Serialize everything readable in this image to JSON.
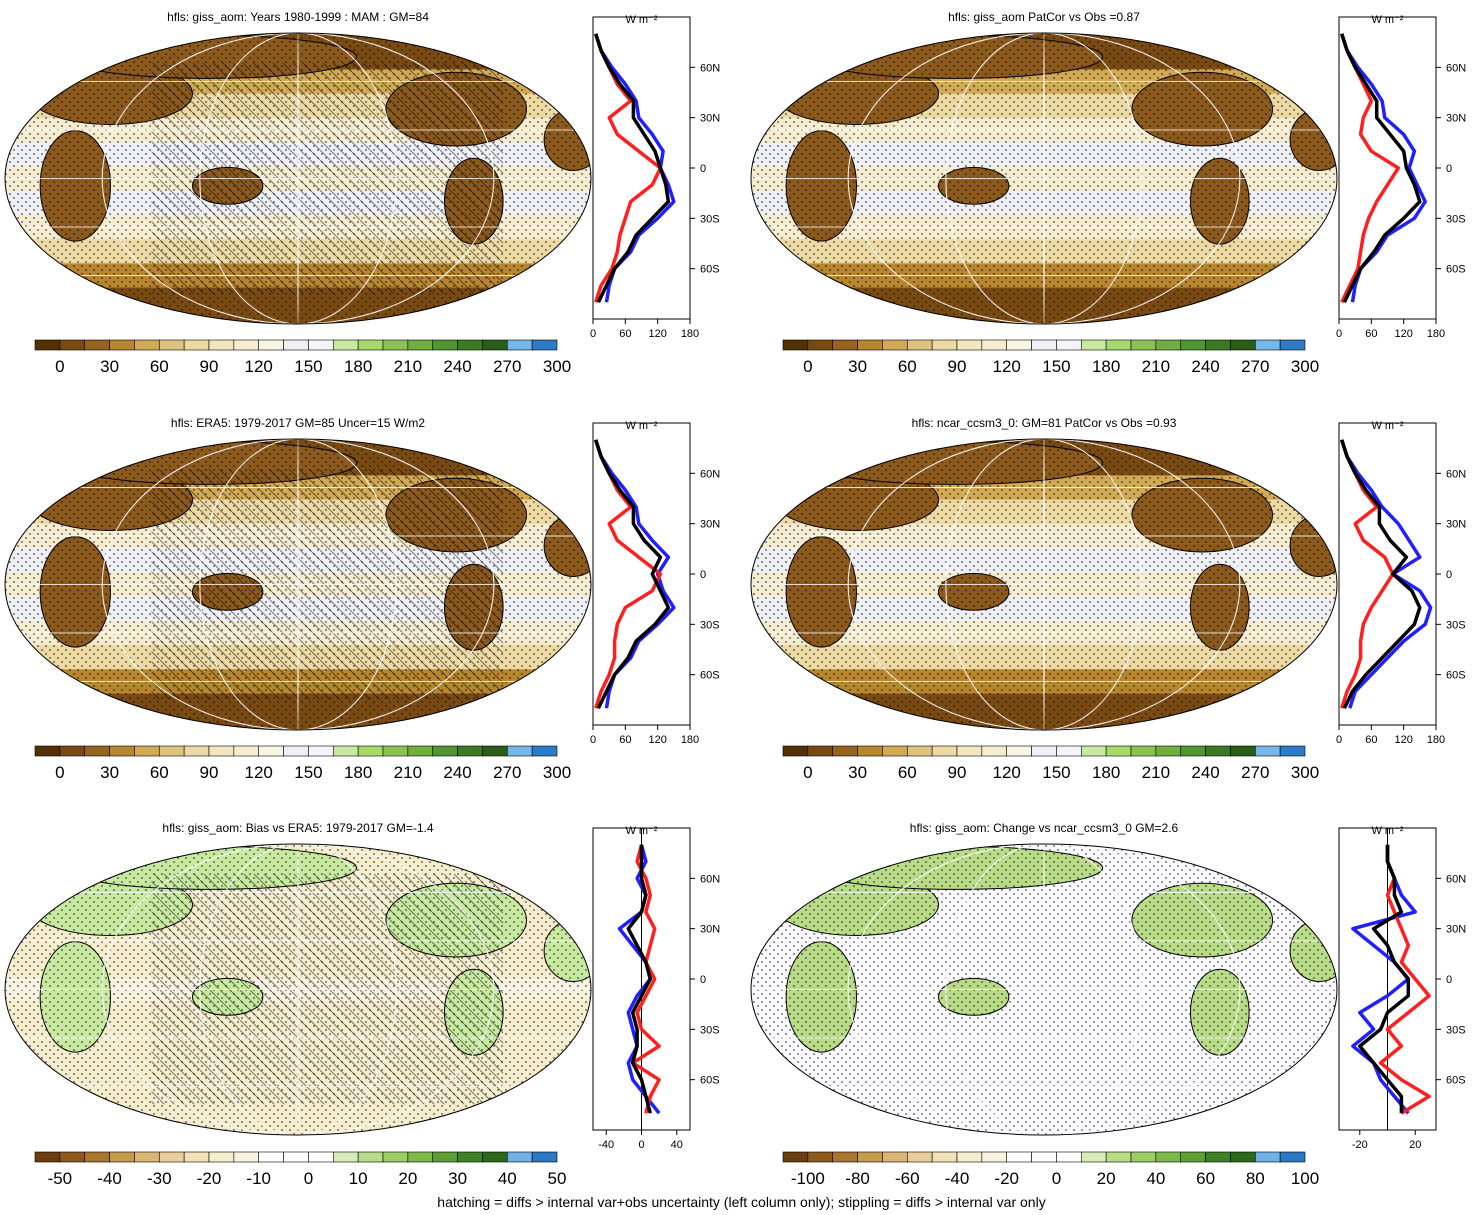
{
  "footer": "hatching = diffs > internal var+obs uncertainty (left column only); stippling = diffs > internal var only",
  "colors": {
    "series_blue": "#1f1fff",
    "series_red": "#ff1f1f",
    "series_black": "#000000",
    "ocean_outline": "#000000"
  },
  "panels": [
    {
      "title": "hfls: giss_aom: Years 1980-1999 : MAM : GM=84",
      "map_kind": "abs",
      "colorbar": {
        "type": "abs",
        "labels": [
          "0",
          "30",
          "60",
          "90",
          "120",
          "150",
          "180",
          "210",
          "240",
          "270",
          "300"
        ]
      },
      "profile": {
        "unit": "W m⁻²",
        "xlabels": [
          "0",
          "60",
          "120",
          "180"
        ],
        "ylabels": [
          "60N",
          "30N",
          "0",
          "30S",
          "60S"
        ]
      }
    },
    {
      "title": "hfls: giss_aom PatCor vs Obs =0.87",
      "map_kind": "abs",
      "colorbar": {
        "type": "abs",
        "labels": [
          "0",
          "30",
          "60",
          "90",
          "120",
          "150",
          "180",
          "210",
          "240",
          "270",
          "300"
        ]
      },
      "profile": {
        "unit": "W m⁻²",
        "xlabels": [
          "0",
          "60",
          "120",
          "180"
        ],
        "ylabels": [
          "60N",
          "30N",
          "0",
          "30S",
          "60S"
        ]
      }
    },
    {
      "title": "hfls: ERA5: 1979-2017 GM=85 Uncer=15 W/m2",
      "map_kind": "abs",
      "colorbar": {
        "type": "abs",
        "labels": [
          "0",
          "30",
          "60",
          "90",
          "120",
          "150",
          "180",
          "210",
          "240",
          "270",
          "300"
        ]
      },
      "profile": {
        "unit": "W m⁻²",
        "xlabels": [
          "0",
          "60",
          "120",
          "180"
        ],
        "ylabels": [
          "60N",
          "30N",
          "0",
          "30S",
          "60S"
        ]
      }
    },
    {
      "title": "hfls: ncar_ccsm3_0: GM=81 PatCor vs Obs =0.93",
      "map_kind": "abs",
      "colorbar": {
        "type": "abs",
        "labels": [
          "0",
          "30",
          "60",
          "90",
          "120",
          "150",
          "180",
          "210",
          "240",
          "270",
          "300"
        ]
      },
      "profile": {
        "unit": "W m⁻²",
        "xlabels": [
          "0",
          "60",
          "120",
          "180"
        ],
        "ylabels": [
          "60N",
          "30N",
          "0",
          "30S",
          "60S"
        ]
      }
    },
    {
      "title": "hfls: giss_aom: Bias vs ERA5: 1979-2017 GM=-1.4",
      "map_kind": "bias",
      "colorbar": {
        "type": "diff",
        "labels": [
          "-50",
          "-40",
          "-30",
          "-20",
          "-10",
          "0",
          "10",
          "20",
          "30",
          "40",
          "50"
        ]
      },
      "profile": {
        "unit": "W m⁻²",
        "xlabels": [
          "-40",
          "0",
          "40"
        ],
        "ylabels": [
          "60N",
          "30N",
          "0",
          "30S",
          "60S"
        ]
      }
    },
    {
      "title": "hfls: giss_aom: Change vs ncar_ccsm3_0 GM=2.6",
      "map_kind": "change",
      "colorbar": {
        "type": "diff",
        "labels": [
          "-100",
          "-80",
          "-60",
          "-40",
          "-20",
          "0",
          "20",
          "40",
          "60",
          "80",
          "100"
        ]
      },
      "profile": {
        "unit": "W m⁻²",
        "xlabels": [
          "-20",
          "20"
        ],
        "ylabels": [
          "60N",
          "30N",
          "0",
          "30S",
          "60S"
        ]
      }
    }
  ],
  "chart_data": [
    {
      "type": "line",
      "title": "hfls: giss_aom: Years 1980-1999 : MAM : GM=84",
      "ylabel": "",
      "ylim": [
        -90,
        90
      ],
      "xlim": [
        0,
        180
      ],
      "y": [
        80,
        70,
        60,
        50,
        40,
        30,
        20,
        10,
        0,
        -10,
        -20,
        -30,
        -40,
        -50,
        -60,
        -70,
        -80
      ],
      "series": [
        {
          "color": "blue",
          "x": [
            5,
            15,
            35,
            60,
            80,
            85,
            110,
            130,
            125,
            140,
            150,
            120,
            85,
            70,
            40,
            30,
            25
          ]
        },
        {
          "color": "red",
          "x": [
            5,
            15,
            30,
            45,
            70,
            30,
            45,
            85,
            125,
            110,
            70,
            60,
            50,
            45,
            35,
            15,
            5
          ]
        },
        {
          "color": "black",
          "x": [
            5,
            15,
            30,
            50,
            75,
            75,
            95,
            115,
            125,
            135,
            140,
            110,
            80,
            65,
            40,
            25,
            10
          ]
        }
      ]
    },
    {
      "type": "line",
      "title": "hfls: giss_aom PatCor vs Obs =0.87",
      "ylabel": "",
      "ylim": [
        -90,
        90
      ],
      "xlim": [
        0,
        180
      ],
      "y": [
        80,
        70,
        60,
        50,
        40,
        30,
        20,
        10,
        0,
        -10,
        -20,
        -30,
        -40,
        -50,
        -60,
        -70,
        -80
      ],
      "series": [
        {
          "color": "blue",
          "x": [
            5,
            15,
            35,
            60,
            80,
            85,
            120,
            140,
            130,
            145,
            160,
            140,
            90,
            70,
            40,
            30,
            25
          ]
        },
        {
          "color": "red",
          "x": [
            5,
            15,
            30,
            45,
            60,
            45,
            40,
            60,
            110,
            90,
            70,
            55,
            45,
            40,
            35,
            20,
            5
          ]
        },
        {
          "color": "black",
          "x": [
            5,
            15,
            30,
            50,
            70,
            70,
            95,
            120,
            125,
            140,
            150,
            120,
            85,
            65,
            40,
            25,
            10
          ]
        }
      ]
    },
    {
      "type": "line",
      "title": "hfls: ERA5: 1979-2017 GM=85 Uncer=15 W/m2",
      "ylabel": "",
      "ylim": [
        -90,
        90
      ],
      "xlim": [
        0,
        180
      ],
      "y": [
        80,
        70,
        60,
        50,
        40,
        30,
        20,
        10,
        0,
        -10,
        -20,
        -30,
        -40,
        -50,
        -60,
        -70,
        -80
      ],
      "series": [
        {
          "color": "blue",
          "x": [
            5,
            15,
            35,
            60,
            80,
            85,
            110,
            140,
            120,
            130,
            150,
            120,
            85,
            70,
            40,
            30,
            25
          ]
        },
        {
          "color": "red",
          "x": [
            5,
            15,
            30,
            45,
            70,
            30,
            45,
            85,
            125,
            110,
            60,
            45,
            40,
            40,
            30,
            15,
            5
          ]
        },
        {
          "color": "black",
          "x": [
            5,
            15,
            30,
            50,
            75,
            75,
            95,
            125,
            110,
            125,
            140,
            115,
            80,
            65,
            40,
            25,
            10
          ]
        }
      ]
    },
    {
      "type": "line",
      "title": "hfls: ncar_ccsm3_0: GM=81 PatCor vs Obs =0.93",
      "ylabel": "",
      "ylim": [
        -90,
        90
      ],
      "xlim": [
        0,
        180
      ],
      "y": [
        80,
        70,
        60,
        50,
        40,
        30,
        20,
        10,
        0,
        -10,
        -20,
        -30,
        -40,
        -50,
        -60,
        -70,
        -80
      ],
      "series": [
        {
          "color": "blue",
          "x": [
            5,
            15,
            35,
            60,
            80,
            110,
            130,
            150,
            100,
            150,
            170,
            160,
            120,
            90,
            60,
            30,
            20
          ]
        },
        {
          "color": "red",
          "x": [
            5,
            15,
            30,
            45,
            70,
            30,
            45,
            85,
            100,
            80,
            60,
            45,
            40,
            40,
            30,
            15,
            5
          ]
        },
        {
          "color": "black",
          "x": [
            5,
            15,
            30,
            50,
            75,
            75,
            95,
            125,
            100,
            135,
            150,
            140,
            110,
            80,
            50,
            25,
            10
          ]
        }
      ]
    },
    {
      "type": "line",
      "title": "hfls: giss_aom: Bias vs ERA5: 1979-2017 GM=-1.4",
      "ylabel": "",
      "ylim": [
        -90,
        90
      ],
      "xlim": [
        -55,
        55
      ],
      "y": [
        80,
        70,
        60,
        50,
        40,
        30,
        20,
        10,
        0,
        -10,
        -20,
        -30,
        -40,
        -50,
        -60,
        -70,
        -80
      ],
      "series": [
        {
          "color": "blue",
          "x": [
            0,
            5,
            -5,
            5,
            0,
            -25,
            -10,
            5,
            10,
            -5,
            -15,
            -10,
            -5,
            -15,
            -10,
            5,
            20
          ]
        },
        {
          "color": "red",
          "x": [
            0,
            -5,
            5,
            10,
            5,
            15,
            10,
            5,
            15,
            5,
            -5,
            0,
            20,
            -10,
            20,
            10,
            5
          ]
        },
        {
          "color": "black",
          "x": [
            0,
            0,
            0,
            5,
            0,
            -15,
            -5,
            5,
            10,
            0,
            -10,
            -5,
            -5,
            -10,
            0,
            5,
            10
          ]
        }
      ]
    },
    {
      "type": "line",
      "title": "hfls: giss_aom: Change vs ncar_ccsm3_0 GM=2.6",
      "ylabel": "",
      "ylim": [
        -90,
        90
      ],
      "xlim": [
        -35,
        35
      ],
      "y": [
        80,
        70,
        60,
        50,
        40,
        30,
        20,
        10,
        0,
        -10,
        -20,
        -30,
        -40,
        -50,
        -60,
        -70,
        -80
      ],
      "series": [
        {
          "color": "blue",
          "x": [
            0,
            0,
            5,
            10,
            20,
            -25,
            -10,
            5,
            15,
            0,
            -20,
            -10,
            -25,
            -10,
            -5,
            5,
            15
          ]
        },
        {
          "color": "red",
          "x": [
            0,
            0,
            5,
            0,
            5,
            10,
            15,
            10,
            20,
            30,
            15,
            0,
            10,
            -5,
            10,
            30,
            10
          ]
        },
        {
          "color": "black",
          "x": [
            0,
            0,
            5,
            5,
            10,
            -10,
            0,
            5,
            15,
            15,
            0,
            -5,
            -20,
            -10,
            0,
            10,
            10
          ]
        }
      ]
    }
  ]
}
